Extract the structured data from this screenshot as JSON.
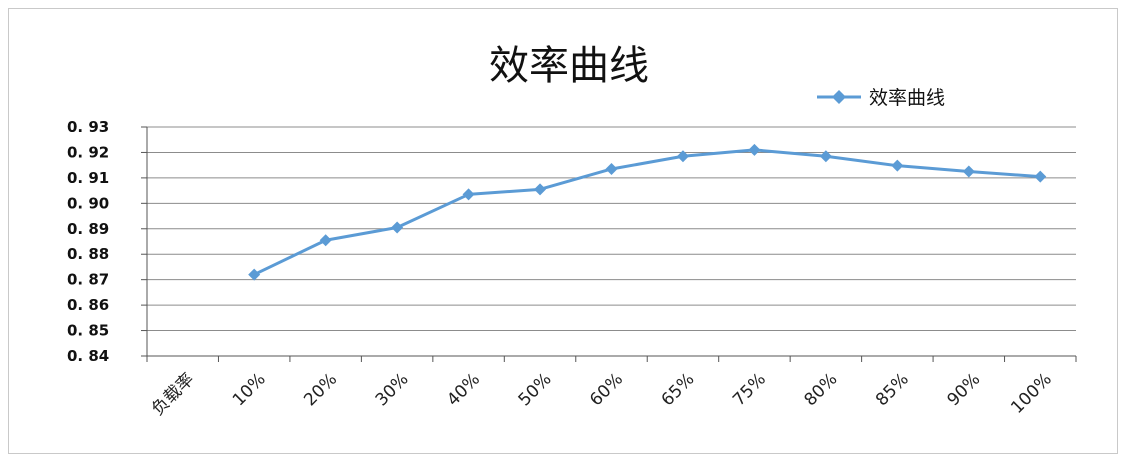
{
  "chart_data": {
    "type": "line",
    "title": "效率曲线",
    "categories": [
      "负载率",
      "10%",
      "20%",
      "30%",
      "40%",
      "50%",
      "60%",
      "65%",
      "75%",
      "80%",
      "85%",
      "90%",
      "100%"
    ],
    "series": [
      {
        "name": "效率曲线",
        "color": "#5b9bd5",
        "marker": "diamond",
        "values": [
          null,
          0.872,
          0.8855,
          0.8905,
          0.9035,
          0.9055,
          0.9135,
          0.9185,
          0.921,
          0.9185,
          0.9148,
          0.9125,
          0.9105
        ]
      }
    ],
    "y_tick_labels": [
      "0. 93",
      "0. 92",
      "0. 91",
      "0. 90",
      "0. 89",
      "0. 88",
      "0. 87",
      "0. 86",
      "0. 85",
      "0. 84"
    ],
    "ylim": [
      0.84,
      0.93
    ],
    "legend_position": "top-right",
    "grid": true,
    "x_label_rotation": "rotated 45 degrees"
  }
}
